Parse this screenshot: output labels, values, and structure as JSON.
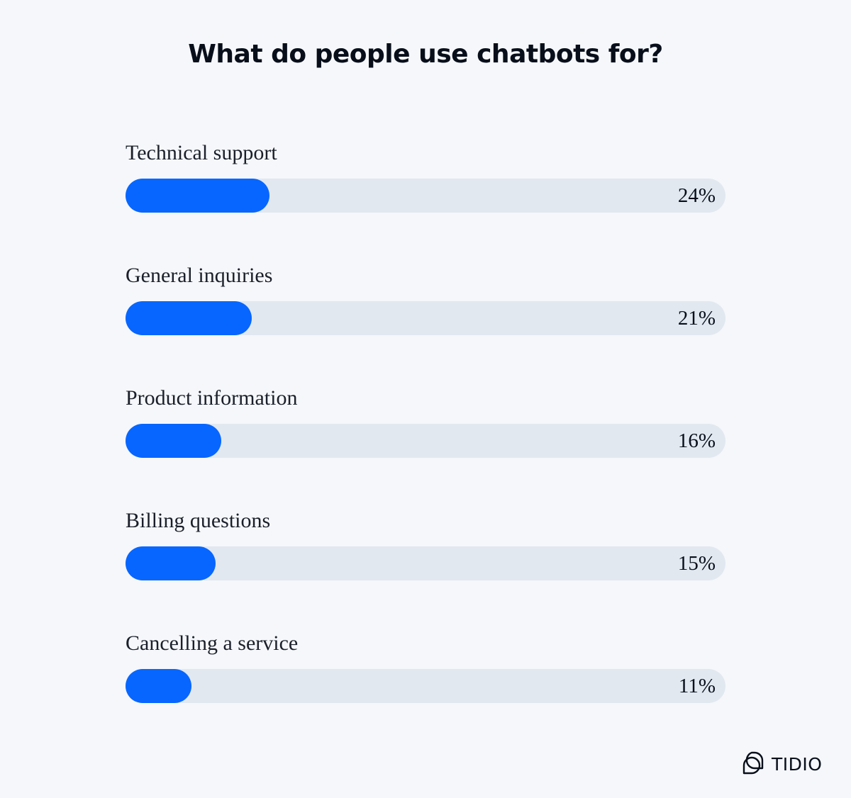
{
  "title": "What do people use chatbots for?",
  "chart_data": {
    "type": "bar",
    "orientation": "horizontal",
    "title": "What do people use chatbots for?",
    "categories": [
      "Technical support",
      "General inquiries",
      "Product information",
      "Billing questions",
      "Cancelling a service"
    ],
    "values": [
      24,
      21,
      16,
      15,
      11
    ],
    "value_labels": [
      "24%",
      "21%",
      "16%",
      "15%",
      "11%"
    ],
    "unit": "%",
    "xlim": [
      0,
      100
    ],
    "grid": false,
    "legend": null,
    "colors": {
      "bar": "#0766ff",
      "track": "#e2e8f0",
      "background": "#f5f7fa"
    }
  },
  "rows": [
    {
      "label": "Technical support",
      "value": "24%",
      "pct": 24
    },
    {
      "label": "General inquiries",
      "value": "21%",
      "pct": 21
    },
    {
      "label": "Product information",
      "value": "16%",
      "pct": 16
    },
    {
      "label": "Billing questions",
      "value": "15%",
      "pct": 15
    },
    {
      "label": "Cancelling a service",
      "value": "11%",
      "pct": 11
    }
  ],
  "brand": {
    "name": "TIDIO",
    "icon": "tidio-logo-icon"
  }
}
